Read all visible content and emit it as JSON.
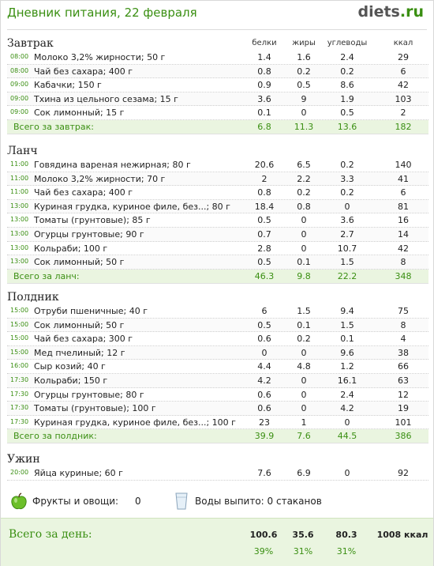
{
  "header": {
    "title": "Дневник питания, 22 февраля",
    "logo_main": "diets",
    "logo_domain": ".ru"
  },
  "columns": {
    "protein": "белки",
    "fat": "жиры",
    "carbs": "углеводы",
    "kcal": "ккал"
  },
  "meals": [
    {
      "title": "Завтрак",
      "items": [
        {
          "time": "08:00",
          "name": "Молоко 3,2% жирности; 50 г",
          "p": "1.4",
          "f": "1.6",
          "c": "2.4",
          "k": "29"
        },
        {
          "time": "08:00",
          "name": "Чай без сахара; 400 г",
          "p": "0.8",
          "f": "0.2",
          "c": "0.2",
          "k": "6"
        },
        {
          "time": "09:00",
          "name": "Кабачки; 150 г",
          "p": "0.9",
          "f": "0.5",
          "c": "8.6",
          "k": "42"
        },
        {
          "time": "09:00",
          "name": "Тхина из цельного сезама; 15 г",
          "p": "3.6",
          "f": "9",
          "c": "1.9",
          "k": "103"
        },
        {
          "time": "09:00",
          "name": "Сок лимонный; 15 г",
          "p": "0.1",
          "f": "0",
          "c": "0.5",
          "k": "2"
        }
      ],
      "total": {
        "label": "Всего за завтрак:",
        "p": "6.8",
        "f": "11.3",
        "c": "13.6",
        "k": "182"
      }
    },
    {
      "title": "Ланч",
      "items": [
        {
          "time": "11:00",
          "name": "Говядина вареная нежирная; 80 г",
          "p": "20.6",
          "f": "6.5",
          "c": "0.2",
          "k": "140"
        },
        {
          "time": "11:00",
          "name": "Молоко 3,2% жирности; 70 г",
          "p": "2",
          "f": "2.2",
          "c": "3.3",
          "k": "41"
        },
        {
          "time": "11:00",
          "name": "Чай без сахара; 400 г",
          "p": "0.8",
          "f": "0.2",
          "c": "0.2",
          "k": "6"
        },
        {
          "time": "13:00",
          "name": "Куриная грудка, куриное филе, без...; 80 г",
          "p": "18.4",
          "f": "0.8",
          "c": "0",
          "k": "81"
        },
        {
          "time": "13:00",
          "name": "Томаты (грунтовые); 85 г",
          "p": "0.5",
          "f": "0",
          "c": "3.6",
          "k": "16"
        },
        {
          "time": "13:00",
          "name": "Огурцы грунтовые; 90 г",
          "p": "0.7",
          "f": "0",
          "c": "2.7",
          "k": "14"
        },
        {
          "time": "13:00",
          "name": "Кольраби; 100 г",
          "p": "2.8",
          "f": "0",
          "c": "10.7",
          "k": "42"
        },
        {
          "time": "13:00",
          "name": "Сок лимонный; 50 г",
          "p": "0.5",
          "f": "0.1",
          "c": "1.5",
          "k": "8"
        }
      ],
      "total": {
        "label": "Всего за ланч:",
        "p": "46.3",
        "f": "9.8",
        "c": "22.2",
        "k": "348"
      }
    },
    {
      "title": "Полдник",
      "items": [
        {
          "time": "15:00",
          "name": "Отруби пшеничные; 40 г",
          "p": "6",
          "f": "1.5",
          "c": "9.4",
          "k": "75"
        },
        {
          "time": "15:00",
          "name": "Сок лимонный; 50 г",
          "p": "0.5",
          "f": "0.1",
          "c": "1.5",
          "k": "8"
        },
        {
          "time": "15:00",
          "name": "Чай без сахара; 300 г",
          "p": "0.6",
          "f": "0.2",
          "c": "0.1",
          "k": "4"
        },
        {
          "time": "15:00",
          "name": "Мед пчелиный; 12 г",
          "p": "0",
          "f": "0",
          "c": "9.6",
          "k": "38"
        },
        {
          "time": "16:00",
          "name": "Сыр козий; 40 г",
          "p": "4.4",
          "f": "4.8",
          "c": "1.2",
          "k": "66"
        },
        {
          "time": "17:30",
          "name": "Кольраби; 150 г",
          "p": "4.2",
          "f": "0",
          "c": "16.1",
          "k": "63"
        },
        {
          "time": "17:30",
          "name": "Огурцы грунтовые; 80 г",
          "p": "0.6",
          "f": "0",
          "c": "2.4",
          "k": "12"
        },
        {
          "time": "17:30",
          "name": "Томаты (грунтовые); 100 г",
          "p": "0.6",
          "f": "0",
          "c": "4.2",
          "k": "19"
        },
        {
          "time": "17:30",
          "name": "Куриная грудка, куриное филе, без...; 100 г",
          "p": "23",
          "f": "1",
          "c": "0",
          "k": "101"
        }
      ],
      "total": {
        "label": "Всего за полдник:",
        "p": "39.9",
        "f": "7.6",
        "c": "44.5",
        "k": "386"
      }
    },
    {
      "title": "Ужин",
      "items": [
        {
          "time": "20:00",
          "name": "Яйца куриные; 60 г",
          "p": "7.6",
          "f": "6.9",
          "c": "0",
          "k": "92"
        }
      ]
    }
  ],
  "summary": {
    "fruits_label": "Фрукты и овощи:",
    "fruits_value": "0",
    "water_text": "Воды выпито: 0 стаканов",
    "fruits_icon": "apple-icon",
    "water_icon": "glass-icon"
  },
  "day_total": {
    "label": "Всего за день:",
    "p": "100.6",
    "f": "35.6",
    "c": "80.3",
    "k": "1008 ккал",
    "p_pct": "39%",
    "f_pct": "31%",
    "c_pct": "31%"
  },
  "colors": {
    "accent": "#3a8f12",
    "total_bg": "#eaf5e0"
  }
}
